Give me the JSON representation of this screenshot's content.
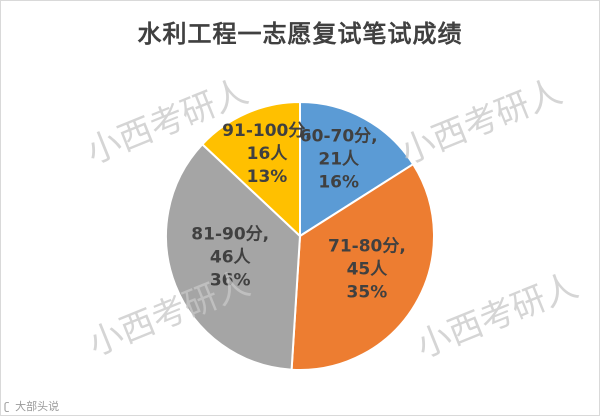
{
  "chart_data": {
    "type": "pie",
    "title": "水利工程一志愿复试笔试成绩",
    "slices": [
      {
        "label": "60-70分,",
        "count_label": "21人",
        "pct_label": "16%",
        "value": 16,
        "color": "#5B9BD5"
      },
      {
        "label": "71-80分,",
        "count_label": "45人",
        "pct_label": "35%",
        "value": 35,
        "color": "#ED7D31"
      },
      {
        "label": "81-90分,",
        "count_label": "46人",
        "pct_label": "36%",
        "value": 36,
        "color": "#A5A5A5"
      },
      {
        "label": "91-100分,",
        "count_label": "16人",
        "pct_label": "13%",
        "value": 13,
        "color": "#FFC000"
      }
    ]
  },
  "watermark": "小西考研人",
  "footer_text": "大部头说"
}
